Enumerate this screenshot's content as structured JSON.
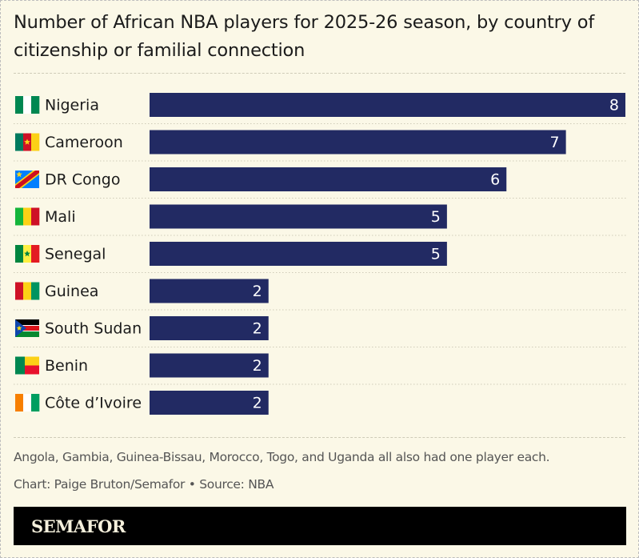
{
  "chart_data": {
    "type": "bar",
    "orientation": "horizontal",
    "title": "Number of African NBA players for 2025-26 season, by country of citizenship or familial connection",
    "categories": [
      "Nigeria",
      "Cameroon",
      "DR Congo",
      "Mali",
      "Senegal",
      "Guinea",
      "South Sudan",
      "Benin",
      "Côte d’Ivoire"
    ],
    "values": [
      8,
      7,
      6,
      5,
      5,
      2,
      2,
      2,
      2
    ],
    "xlim": [
      0,
      8
    ],
    "bar_color": "#222a63",
    "data_labels": true,
    "grid": false,
    "flags": [
      {
        "country": "Nigeria",
        "icon": "nigeria-flag-icon",
        "stripes": [
          "#008751",
          "#ffffff",
          "#008751"
        ],
        "dir": "v"
      },
      {
        "country": "Cameroon",
        "icon": "cameroon-flag-icon",
        "stripes": [
          "#007a5e",
          "#ce1126",
          "#fcd116"
        ],
        "dir": "v",
        "star": "#fcd116"
      },
      {
        "country": "DR Congo",
        "icon": "dr-congo-flag-icon",
        "special": "drc"
      },
      {
        "country": "Mali",
        "icon": "mali-flag-icon",
        "stripes": [
          "#14b53a",
          "#fcd116",
          "#ce1126"
        ],
        "dir": "v"
      },
      {
        "country": "Senegal",
        "icon": "senegal-flag-icon",
        "stripes": [
          "#00853f",
          "#fdef42",
          "#e31b23"
        ],
        "dir": "v",
        "star": "#00853f"
      },
      {
        "country": "Guinea",
        "icon": "guinea-flag-icon",
        "stripes": [
          "#ce1126",
          "#fcd116",
          "#009460"
        ],
        "dir": "v"
      },
      {
        "country": "South Sudan",
        "icon": "south-sudan-flag-icon",
        "special": "ssd"
      },
      {
        "country": "Benin",
        "icon": "benin-flag-icon",
        "special": "benin"
      },
      {
        "country": "Côte d’Ivoire",
        "icon": "cote-divoire-flag-icon",
        "stripes": [
          "#f77f00",
          "#ffffff",
          "#009e60"
        ],
        "dir": "v"
      }
    ]
  },
  "footnote": "Angola, Gambia, Guinea-Bissau, Morocco, Togo, and Uganda all also had one player each.",
  "credit": "Chart: Paige Bruton/Semafor • Source: NBA",
  "brand": "SEMAFOR"
}
